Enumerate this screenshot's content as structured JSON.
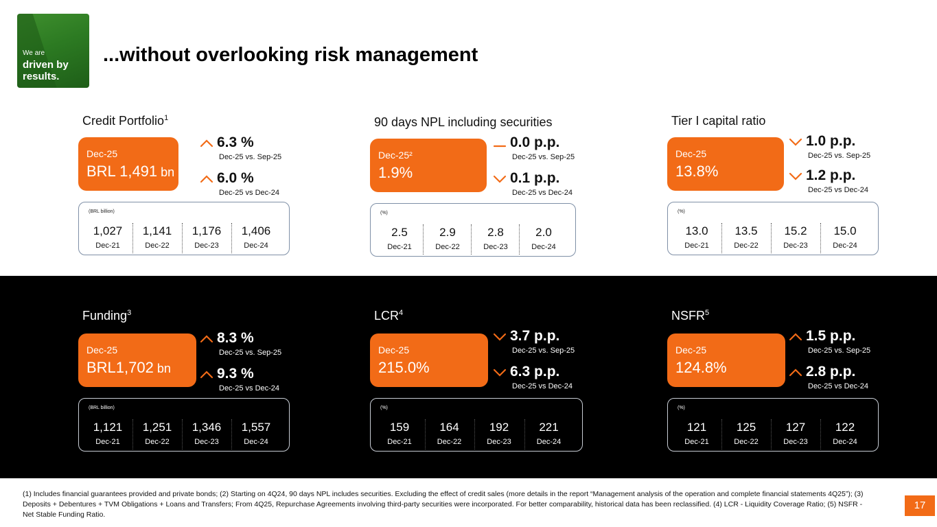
{
  "logo": {
    "small": "We are",
    "big_line1": "driven by",
    "big_line2": "results."
  },
  "title": "...without overlooking risk management",
  "colors": {
    "accent": "#f26b17",
    "dark_band": "#000000",
    "brand_green": "#2c7a22"
  },
  "panels": [
    {
      "title": "Credit Portfolio",
      "title_sup": "1",
      "hero": {
        "period": "Dec-25",
        "value": "BRL 1,491",
        "unit": " bn"
      },
      "delta1": {
        "direction": "up",
        "value": "6.3 %",
        "compare": "Dec-25 vs. Sep-25"
      },
      "delta2": {
        "direction": "up",
        "value": "6.0 %",
        "compare": "Dec-25 vs Dec-24"
      },
      "history": {
        "unit": "(BRL billion)",
        "items": [
          {
            "value": "1,027",
            "period": "Dec-21"
          },
          {
            "value": "1,141",
            "period": "Dec-22"
          },
          {
            "value": "1,176",
            "period": "Dec-23"
          },
          {
            "value": "1,406",
            "period": "Dec-24"
          }
        ]
      }
    },
    {
      "title": "90 days NPL including securities",
      "title_sup": "",
      "hero": {
        "period": "Dec-25²",
        "value": "1.9%",
        "unit": ""
      },
      "delta1": {
        "direction": "flat",
        "value": "0.0 p.p.",
        "compare": "Dec-25 vs. Sep-25"
      },
      "delta2": {
        "direction": "down",
        "value": "0.1 p.p.",
        "compare": "Dec-25 vs Dec-24"
      },
      "history": {
        "unit": "(%)",
        "items": [
          {
            "value": "2.5",
            "period": "Dec-21"
          },
          {
            "value": "2.9",
            "period": "Dec-22"
          },
          {
            "value": "2.8",
            "period": "Dec-23"
          },
          {
            "value": "2.0",
            "period": "Dec-24"
          }
        ]
      }
    },
    {
      "title": "Tier I capital ratio",
      "title_sup": "",
      "hero": {
        "period": "Dec-25",
        "value": "13.8%",
        "unit": ""
      },
      "delta1": {
        "direction": "down",
        "value": "1.0 p.p.",
        "compare": "Dec-25 vs. Sep-25"
      },
      "delta2": {
        "direction": "down",
        "value": "1.2 p.p.",
        "compare": "Dec-25 vs Dec-24"
      },
      "history": {
        "unit": "(%)",
        "items": [
          {
            "value": "13.0",
            "period": "Dec-21"
          },
          {
            "value": "13.5",
            "period": "Dec-22"
          },
          {
            "value": "15.2",
            "period": "Dec-23"
          },
          {
            "value": "15.0",
            "period": "Dec-24"
          }
        ]
      }
    },
    {
      "title": "Funding",
      "title_sup": "3",
      "hero": {
        "period": "Dec-25",
        "value": "BRL1,702",
        "unit": " bn"
      },
      "delta1": {
        "direction": "up",
        "value": "8.3 %",
        "compare": "Dec-25 vs. Sep-25"
      },
      "delta2": {
        "direction": "up",
        "value": "9.3 %",
        "compare": "Dec-25 vs Dec-24"
      },
      "history": {
        "unit": "(BRL billion)",
        "items": [
          {
            "value": "1,121",
            "period": "Dec-21"
          },
          {
            "value": "1,251",
            "period": "Dec-22"
          },
          {
            "value": "1,346",
            "period": "Dec-23"
          },
          {
            "value": "1,557",
            "period": "Dec-24"
          }
        ]
      }
    },
    {
      "title": "LCR",
      "title_sup": "4",
      "hero": {
        "period": "Dec-25",
        "value": "215.0%",
        "unit": ""
      },
      "delta1": {
        "direction": "down",
        "value": "3.7 p.p.",
        "compare": "Dec-25 vs. Sep-25"
      },
      "delta2": {
        "direction": "down",
        "value": "6.3 p.p.",
        "compare": "Dec-25 vs Dec-24"
      },
      "history": {
        "unit": "(%)",
        "items": [
          {
            "value": "159",
            "period": "Dec-21"
          },
          {
            "value": "164",
            "period": "Dec-22"
          },
          {
            "value": "192",
            "period": "Dec-23"
          },
          {
            "value": "221",
            "period": "Dec-24"
          }
        ]
      }
    },
    {
      "title": "NSFR",
      "title_sup": "5",
      "hero": {
        "period": "Dec-25",
        "value": "124.8%",
        "unit": ""
      },
      "delta1": {
        "direction": "up",
        "value": "1.5 p.p.",
        "compare": "Dec-25 vs. Sep-25"
      },
      "delta2": {
        "direction": "up",
        "value": "2.8 p.p.",
        "compare": "Dec-25 vs Dec-24"
      },
      "history": {
        "unit": "(%)",
        "items": [
          {
            "value": "121",
            "period": "Dec-21"
          },
          {
            "value": "125",
            "period": "Dec-22"
          },
          {
            "value": "127",
            "period": "Dec-23"
          },
          {
            "value": "122",
            "period": "Dec-24"
          }
        ]
      }
    }
  ],
  "footnote": "(1) Includes financial guarantees provided and private bonds; (2) Starting on 4Q24, 90 days NPL includes securities. Excluding the effect of credit sales (more details in the report “Management analysis of the operation and complete financial statements 4Q25”); (3) Deposits + Debentures + TVM Obligations + Loans and Transfers; From 4Q25, Repurchase Agreements involving third-party securities were incorporated. For better comparability, historical data has been reclassified. (4) LCR - Liquidity Coverage Ratio; (5) NSFR - Net Stable Funding Ratio.",
  "page_number": "17"
}
